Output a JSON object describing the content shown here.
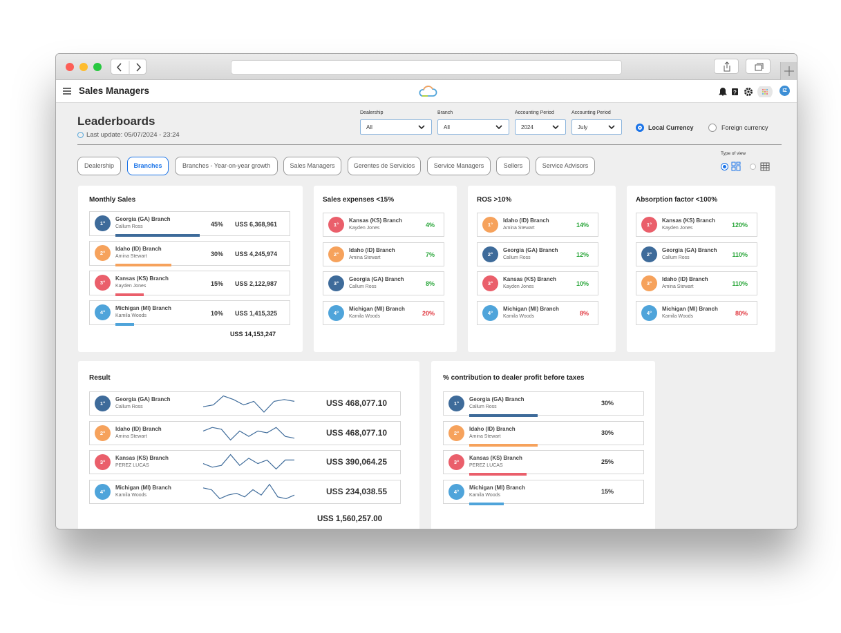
{
  "app": {
    "title": "Sales Managers",
    "user": "IZ"
  },
  "page": {
    "title": "Leaderboards",
    "last_update": "Last update: 05/07/2024 - 23:24"
  },
  "filters": [
    {
      "label": "Dealership",
      "value": "All"
    },
    {
      "label": "Branch",
      "value": "All"
    },
    {
      "label": "Accounting Period",
      "value": "2024"
    },
    {
      "label": "Accounting Period",
      "value": "July"
    }
  ],
  "currency": {
    "options": [
      "Local Currency",
      "Foreign currency"
    ],
    "selected": 0
  },
  "tabs": {
    "items": [
      "Dealership",
      "Branches",
      "Branches - Year-on-year growth",
      "Sales Managers",
      "Gerentes de Servicios",
      "Service Managers",
      "Sellers",
      "Service Advisors"
    ],
    "active": 1
  },
  "view": {
    "label": "Type of view",
    "selected": 0
  },
  "monthly": {
    "title": "Monthly Sales",
    "rows": [
      {
        "rank": "1°",
        "color": "#3e6b9a",
        "branch": "Georgia (GA) Branch",
        "manager": "Callum Ross",
        "share": {
          "value": 45,
          "label": "45%"
        },
        "amount": "USS 6,368,961"
      },
      {
        "rank": "2°",
        "color": "#f6a25c",
        "branch": "Idaho (ID) Branch",
        "manager": "Amina Stewart",
        "share": {
          "value": 30,
          "label": "30%"
        },
        "amount": "USS 4,245,974"
      },
      {
        "rank": "3°",
        "color": "#ea5f6b",
        "branch": "Kansas (KS) Branch",
        "manager": "Kayden Jones",
        "share": {
          "value": 15,
          "label": "15%"
        },
        "amount": "USS 2,122,987"
      },
      {
        "rank": "4°",
        "color": "#4fa4da",
        "branch": "Michigan (MI) Branch",
        "manager": "Kamila Woods",
        "share": {
          "value": 10,
          "label": "10%"
        },
        "amount": "USS 1,415,325"
      }
    ],
    "total": "USS 14,153,247"
  },
  "kpis": [
    {
      "title": "Sales expenses <15%",
      "rows": [
        {
          "rank": "1°",
          "color": "#ea5f6b",
          "branch": "Kansas (KS) Branch",
          "manager": "Kayden Jones",
          "value": "4%",
          "status": "#2aa63a"
        },
        {
          "rank": "2°",
          "color": "#f6a25c",
          "branch": "Idaho (ID) Branch",
          "manager": "Amina Stewart",
          "value": "7%",
          "status": "#2aa63a"
        },
        {
          "rank": "3°",
          "color": "#3e6b9a",
          "branch": "Georgia (GA) Branch",
          "manager": "Callum Ross",
          "value": "8%",
          "status": "#2aa63a"
        },
        {
          "rank": "4°",
          "color": "#4fa4da",
          "branch": "Michigan (MI) Branch",
          "manager": "Kamila Woods",
          "value": "20%",
          "status": "#e0353d"
        }
      ]
    },
    {
      "title": "ROS >10%",
      "rows": [
        {
          "rank": "1°",
          "color": "#f6a25c",
          "branch": "Idaho (ID) Branch",
          "manager": "Amina Stewart",
          "value": "14%",
          "status": "#2aa63a"
        },
        {
          "rank": "2°",
          "color": "#3e6b9a",
          "branch": "Georgia (GA) Branch",
          "manager": "Callum Ross",
          "value": "12%",
          "status": "#2aa63a"
        },
        {
          "rank": "3°",
          "color": "#ea5f6b",
          "branch": "Kansas (KS) Branch",
          "manager": "Kayden Jones",
          "value": "10%",
          "status": "#2aa63a"
        },
        {
          "rank": "4°",
          "color": "#4fa4da",
          "branch": "Michigan (MI) Branch",
          "manager": "Kamila Woods",
          "value": "8%",
          "status": "#e0353d"
        }
      ]
    },
    {
      "title": "Absorption factor <100%",
      "rows": [
        {
          "rank": "1°",
          "color": "#ea5f6b",
          "branch": "Kansas (KS) Branch",
          "manager": "Kayden Jones",
          "value": "120%",
          "status": "#2aa63a"
        },
        {
          "rank": "2°",
          "color": "#3e6b9a",
          "branch": "Georgia (GA) Branch",
          "manager": "Callum Ross",
          "value": "110%",
          "status": "#2aa63a"
        },
        {
          "rank": "3°",
          "color": "#f6a25c",
          "branch": "Idaho (ID) Branch",
          "manager": "Amina Stewart",
          "value": "110%",
          "status": "#2aa63a"
        },
        {
          "rank": "4°",
          "color": "#4fa4da",
          "branch": "Michigan (MI) Branch",
          "manager": "Kamila Woods",
          "value": "80%",
          "status": "#e0353d"
        }
      ]
    }
  ],
  "result": {
    "title": "Result",
    "rows": [
      {
        "rank": "1°",
        "color": "#3e6b9a",
        "branch": "Georgia (GA) Branch",
        "manager": "Callum Ross",
        "trend": [
          3,
          4,
          9,
          7,
          4,
          6,
          0,
          6,
          7,
          6
        ],
        "amount": "USS 468,077.10"
      },
      {
        "rank": "2°",
        "color": "#f6a25c",
        "branch": "Idaho (ID) Branch",
        "manager": "Amina Stewart",
        "trend": [
          6,
          8,
          7,
          1,
          6,
          3,
          6,
          5,
          8,
          3,
          2
        ],
        "amount": "USS 468,077.10"
      },
      {
        "rank": "3°",
        "color": "#ea5f6b",
        "branch": "Kansas (KS) Branch",
        "manager": "PEREZ LUCAS",
        "trend": [
          4,
          2,
          3,
          9,
          3,
          7,
          4,
          6,
          1,
          6,
          6
        ],
        "amount": "USS 390,064.25"
      },
      {
        "rank": "4°",
        "color": "#4fa4da",
        "branch": "Michigan (MI) Branch",
        "manager": "Kamila Woods",
        "trend": [
          7,
          6,
          1,
          3,
          4,
          2,
          6,
          3,
          9,
          2,
          1,
          3
        ],
        "amount": "USS 234,038.55"
      }
    ],
    "total": "USS 1,560,257.00"
  },
  "contribution": {
    "title": "%  contribution to dealer profit before taxes",
    "rows": [
      {
        "rank": "1°",
        "color": "#3e6b9a",
        "branch": "Georgia (GA) Branch",
        "manager": "Callum Ross",
        "share": {
          "value": 30,
          "label": "30%"
        }
      },
      {
        "rank": "2°",
        "color": "#f6a25c",
        "branch": "Idaho (ID) Branch",
        "manager": "Amina Stewart",
        "share": {
          "value": 30,
          "label": "30%"
        }
      },
      {
        "rank": "3°",
        "color": "#ea5f6b",
        "branch": "Kansas (KS) Branch",
        "manager": "PEREZ LUCAS",
        "share": {
          "value": 25,
          "label": "25%"
        }
      },
      {
        "rank": "4°",
        "color": "#4fa4da",
        "branch": "Michigan (MI) Branch",
        "manager": "Kamila Woods",
        "share": {
          "value": 15,
          "label": "15%"
        }
      }
    ]
  }
}
